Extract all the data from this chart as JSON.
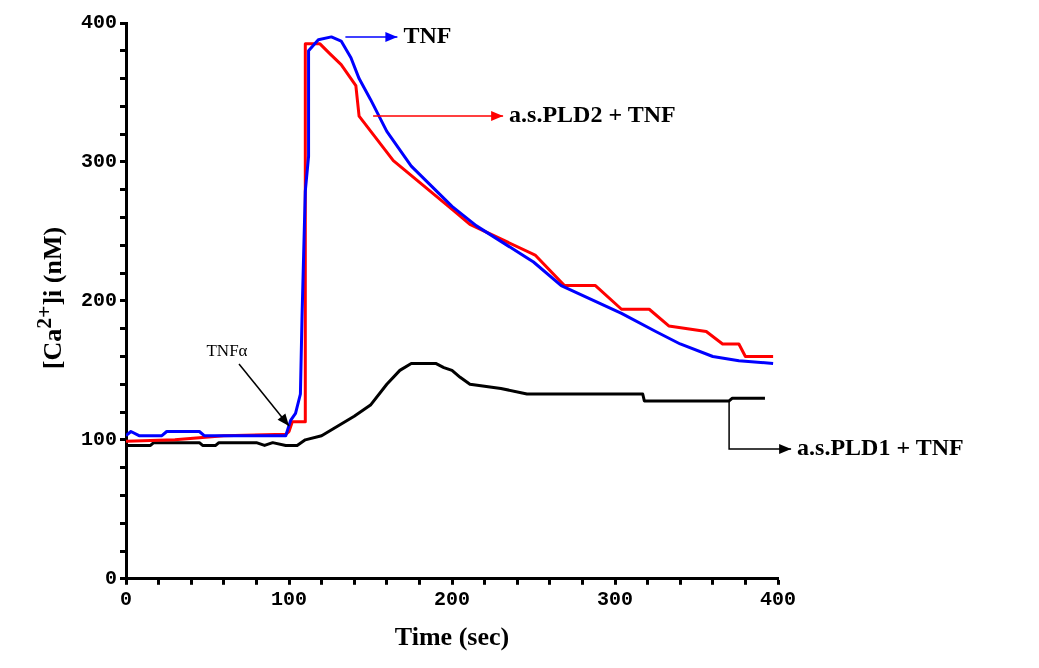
{
  "chart_data": {
    "type": "line",
    "xlabel": "Time (sec)",
    "ylabel": "[Ca$^{2+}$]i (nM)",
    "xlim": [
      0,
      400
    ],
    "ylim": [
      0,
      400
    ],
    "xticks": [
      0,
      {
        "value": 20,
        "label": null
      },
      {
        "value": 40,
        "label": null
      },
      {
        "value": 60,
        "label": null
      },
      {
        "value": 80,
        "label": null
      },
      100,
      {
        "value": 120,
        "label": null
      },
      {
        "value": 140,
        "label": null
      },
      {
        "value": 160,
        "label": null
      },
      {
        "value": 180,
        "label": null
      },
      200,
      {
        "value": 220,
        "label": null
      },
      {
        "value": 240,
        "label": null
      },
      {
        "value": 260,
        "label": null
      },
      {
        "value": 280,
        "label": null
      },
      300,
      {
        "value": 320,
        "label": null
      },
      {
        "value": 340,
        "label": null
      },
      {
        "value": 360,
        "label": null
      },
      {
        "value": 380,
        "label": null
      },
      400
    ],
    "yticks": [
      0,
      {
        "value": 20,
        "label": null
      },
      {
        "value": 40,
        "label": null
      },
      {
        "value": 60,
        "label": null
      },
      {
        "value": 80,
        "label": null
      },
      100,
      {
        "value": 120,
        "label": null
      },
      {
        "value": 140,
        "label": null
      },
      {
        "value": 160,
        "label": null
      },
      {
        "value": 180,
        "label": null
      },
      200,
      {
        "value": 220,
        "label": null
      },
      {
        "value": 240,
        "label": null
      },
      {
        "value": 260,
        "label": null
      },
      {
        "value": 280,
        "label": null
      },
      300,
      {
        "value": 320,
        "label": null
      },
      {
        "value": 340,
        "label": null
      },
      {
        "value": 360,
        "label": null
      },
      {
        "value": 380,
        "label": null
      },
      400
    ],
    "legend": "right",
    "annotations": [
      {
        "text": "TNFα",
        "x": 100,
        "y": 110
      }
    ],
    "series": [
      {
        "name": "TNF",
        "color": "#0000ff",
        "x": [
          0,
          3,
          8,
          22,
          25,
          45,
          48,
          98,
          101,
          104,
          107,
          108,
          110,
          112,
          112,
          118,
          126,
          132,
          138,
          143,
          150,
          160,
          175,
          200,
          215,
          250,
          267,
          304,
          325,
          340,
          360,
          376,
          397
        ],
        "values": [
          103,
          106,
          103,
          103,
          106,
          106,
          103,
          103,
          114,
          119,
          133,
          189,
          279,
          304,
          380,
          388,
          390,
          387,
          375,
          360,
          345,
          322,
          297,
          268,
          254,
          228,
          211,
          191,
          178,
          169,
          160,
          157,
          155
        ]
      },
      {
        "name": "a.s.PLD2 + TNF",
        "color": "#ff0000",
        "x": [
          0,
          30,
          60,
          98,
          100,
          102,
          110,
          110,
          119,
          125,
          132,
          141,
          143,
          164,
          201,
          211,
          251,
          269,
          288,
          304,
          321,
          333,
          356,
          366,
          376,
          380,
          397
        ],
        "values": [
          99,
          100,
          103,
          104,
          106,
          113,
          113,
          385,
          385,
          378,
          370,
          355,
          333,
          301,
          265,
          255,
          233,
          211,
          211,
          194,
          194,
          182,
          178,
          169,
          169,
          160,
          160
        ]
      },
      {
        "name": "a.s.PLD1 + TNF",
        "color": "#000000",
        "x": [
          0,
          15,
          17,
          45,
          47,
          55,
          57,
          80,
          85,
          90,
          98,
          105,
          110,
          120,
          130,
          140,
          150,
          160,
          168,
          175,
          190,
          195,
          200,
          205,
          211,
          230,
          246,
          317,
          318,
          370,
          372,
          392
        ],
        "values": [
          96,
          96,
          98,
          98,
          96,
          96,
          98,
          98,
          96,
          98,
          96,
          96,
          100,
          103,
          110,
          117,
          125,
          140,
          150,
          155,
          155,
          152,
          150,
          145,
          140,
          137,
          133,
          133,
          128,
          128,
          130,
          130
        ]
      }
    ]
  }
}
